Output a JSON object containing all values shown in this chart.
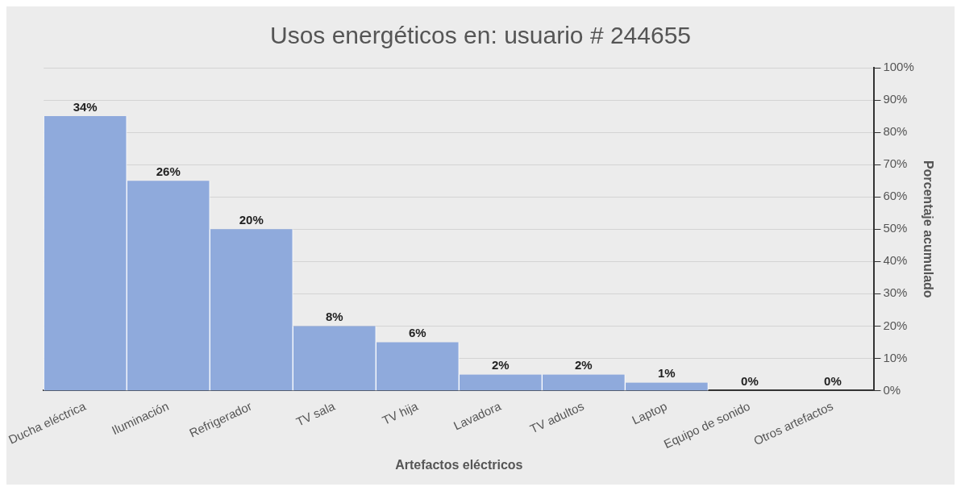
{
  "chart_data": {
    "type": "bar",
    "title": "Usos energéticos en: usuario # 244655",
    "xlabel": "Artefactos eléctricos",
    "y2label": "Porcentaje acumulado",
    "categories": [
      "Ducha eléctrica",
      "Iluminación",
      "Refrigerador",
      "TV sala",
      "TV hija",
      "Lavadora",
      "TV adultos",
      "Laptop",
      "Equipo de sonido",
      "Otros artefactos"
    ],
    "values": [
      34,
      26,
      20,
      8,
      6,
      2,
      2,
      1,
      0,
      0
    ],
    "value_labels": [
      "34%",
      "26%",
      "20%",
      "8%",
      "6%",
      "2%",
      "2%",
      "1%",
      "0%",
      "0%"
    ],
    "color": "#8faadc",
    "ylim": [
      0,
      40
    ],
    "y2lim": [
      0,
      100
    ],
    "y2ticks": [
      {
        "value": 0,
        "label": "0%"
      },
      {
        "value": 10,
        "label": "10%"
      },
      {
        "value": 20,
        "label": "20%"
      },
      {
        "value": 30,
        "label": "30%"
      },
      {
        "value": 40,
        "label": "40%"
      },
      {
        "value": 50,
        "label": "50%"
      },
      {
        "value": 60,
        "label": "60%"
      },
      {
        "value": 70,
        "label": "70%"
      },
      {
        "value": 80,
        "label": "80%"
      },
      {
        "value": 90,
        "label": "90%"
      },
      {
        "value": 100,
        "label": "100%"
      }
    ],
    "grid": "y2",
    "legend": false
  }
}
